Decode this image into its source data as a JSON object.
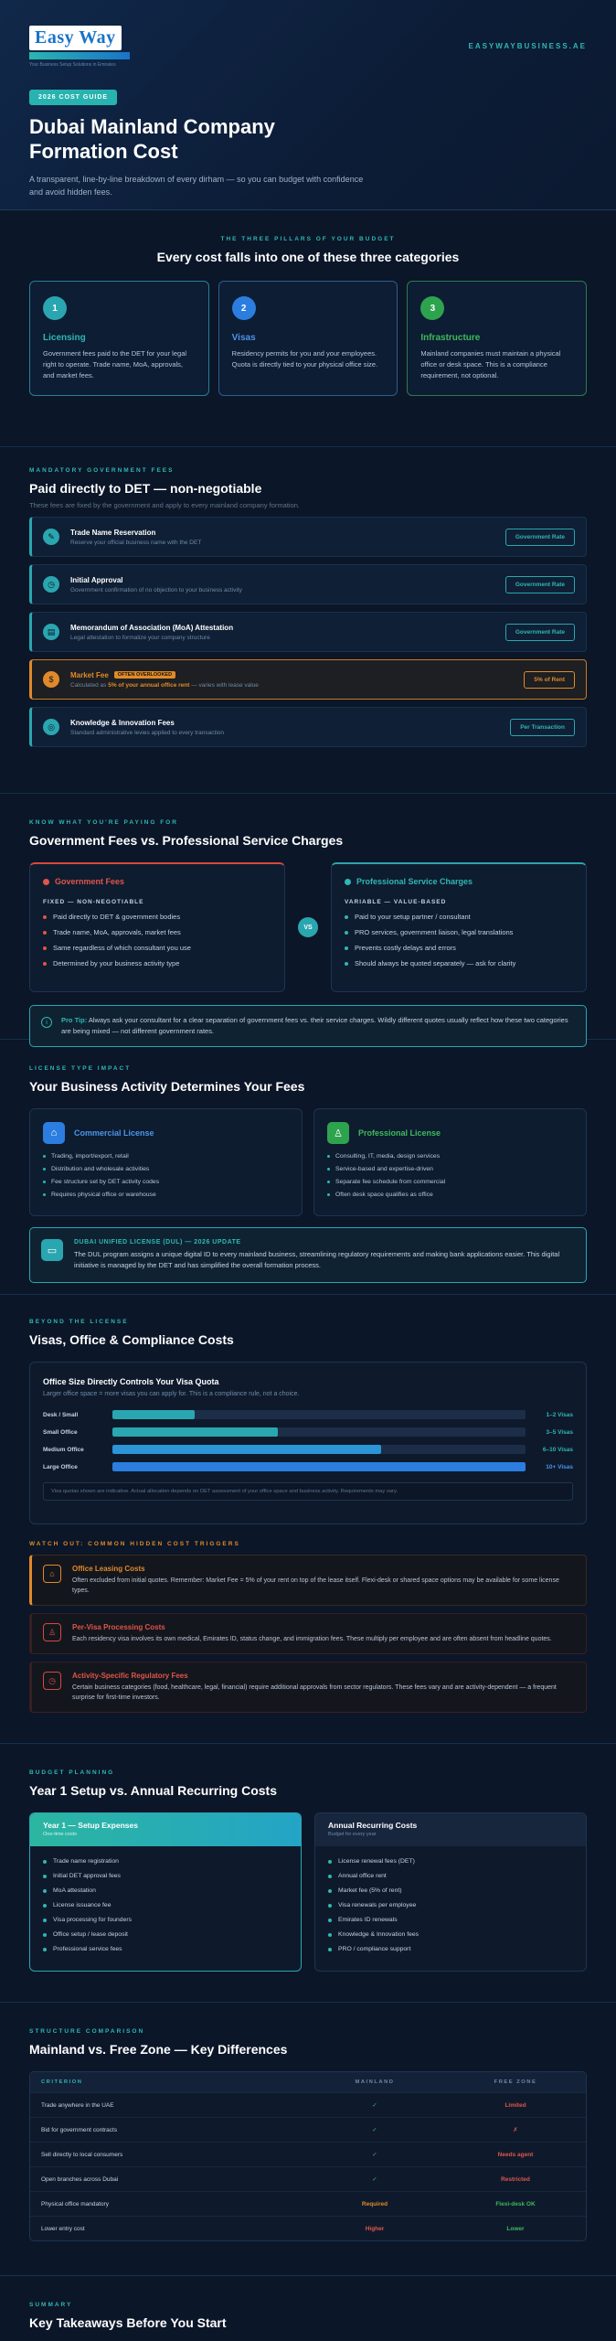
{
  "hero": {
    "logo": "Easy Way",
    "logo_tagline": "Your Business Setup Solutions in Emirates",
    "site": "EASYWAYBUSINESS.AE",
    "badge": "2026 COST GUIDE",
    "title": "Dubai Mainland Company Formation Cost",
    "subtitle": "A transparent, line-by-line breakdown of every dirham — so you can budget with confidence and avoid hidden fees."
  },
  "pillars": {
    "eyebrow": "THE THREE PILLARS OF YOUR BUDGET",
    "title": "Every cost falls into one of these three categories",
    "items": [
      {
        "num": "1",
        "title": "Licensing",
        "desc": "Government fees paid to the DET for your legal right to operate. Trade name, MoA, approvals, and market fees."
      },
      {
        "num": "2",
        "title": "Visas",
        "desc": "Residency permits for you and your employees. Quota is directly tied to your physical office size."
      },
      {
        "num": "3",
        "title": "Infrastructure",
        "desc": "Mainland companies must maintain a physical office or desk space. This is a compliance requirement, not optional."
      }
    ]
  },
  "fees": {
    "eyebrow": "MANDATORY GOVERNMENT FEES",
    "title": "Paid directly to DET — non-negotiable",
    "subtitle": "These fees are fixed by the government and apply to every mainland company formation.",
    "items": [
      {
        "icon": "✎",
        "title": "Trade Name Reservation",
        "sub": "Reserve your official business name with the DET",
        "tag": "Government Rate"
      },
      {
        "icon": "◷",
        "title": "Initial Approval",
        "sub": "Government confirmation of no objection to your business activity",
        "tag": "Government Rate"
      },
      {
        "icon": "▤",
        "title": "Memorandum of Association (MoA) Attestation",
        "sub": "Legal attestation to formalize your company structure",
        "tag": "Government Rate"
      },
      {
        "icon": "$",
        "title": "Market Fee",
        "badge": "OFTEN OVERLOOKED",
        "sub_pre": "Calculated as ",
        "sub_bold": "5% of your annual office rent",
        "sub_post": " — varies with lease value",
        "tag": "5% of Rent"
      },
      {
        "icon": "◎",
        "title": "Knowledge & Innovation Fees",
        "sub": "Standard administrative levies applied to every transaction",
        "tag": "Per Transaction"
      }
    ]
  },
  "compare": {
    "eyebrow": "KNOW WHAT YOU'RE PAYING FOR",
    "title": "Government Fees vs. Professional Service Charges",
    "gov": {
      "title": "Government Fees",
      "kind": "FIXED — NON-NEGOTIABLE",
      "items": [
        "Paid directly to DET & government bodies",
        "Trade name, MoA, approvals, market fees",
        "Same regardless of which consultant you use",
        "Determined by your business activity type"
      ]
    },
    "vs": "VS",
    "pro": {
      "title": "Professional Service Charges",
      "kind": "VARIABLE — VALUE-BASED",
      "items": [
        "Paid to your setup partner / consultant",
        "PRO services, government liaison, legal translations",
        "Prevents costly delays and errors",
        "Should always be quoted separately — ask for clarity"
      ]
    },
    "tip_label": "Pro Tip:",
    "tip_text": " Always ask your consultant for a clear separation of government fees vs. their service charges. Wildly different quotes usually reflect how these two categories are being mixed — not different government rates."
  },
  "license": {
    "eyebrow": "LICENSE TYPE IMPACT",
    "title": "Your Business Activity Determines Your Fees",
    "commercial": {
      "title": "Commercial License",
      "items": [
        "Trading, import/export, retail",
        "Distribution and wholesale activities",
        "Fee structure set by DET activity codes",
        "Requires physical office or warehouse"
      ]
    },
    "professional": {
      "title": "Professional License",
      "items": [
        "Consulting, IT, media, design services",
        "Service-based and expertise-driven",
        "Separate fee schedule from commercial",
        "Often desk space qualifies as office"
      ]
    },
    "dul_title": "DUBAI UNIFIED LICENSE (DUL) — 2026 UPDATE",
    "dul_text": "The DUL program assigns a unique digital ID to every mainland business, streamlining regulatory requirements and making bank applications easier. This digital initiative is managed by the DET and has simplified the overall formation process."
  },
  "visas": {
    "eyebrow": "BEYOND THE LICENSE",
    "title": "Visas, Office & Compliance Costs",
    "quota_title": "Office Size Directly Controls Your Visa Quota",
    "quota_sub": "Larger office space = more visas you can apply for. This is a compliance rule, not a choice.",
    "bars": [
      {
        "label": "Desk / Small",
        "fill": 0.2,
        "value": "1–2 Visas",
        "color": "#2aa6b0"
      },
      {
        "label": "Small Office",
        "fill": 0.4,
        "value": "3–5 Visas",
        "color": "#2aa6b0"
      },
      {
        "label": "Medium Office",
        "fill": 0.65,
        "value": "6–10 Visas",
        "color": "#2b95d8"
      },
      {
        "label": "Large Office",
        "fill": 1.0,
        "value": "10+ Visas",
        "color": "#2b7ee0"
      }
    ],
    "quota_note": "Visa quotas shown are indicative. Actual allocation depends on DET assessment of your office space and business activity. Requirements may vary.",
    "watch_eyebrow": "WATCH OUT: COMMON HIDDEN COST TRIGGERS",
    "traps": [
      {
        "icon": "⌂",
        "title": "Office Leasing Costs",
        "text": "Often excluded from initial quotes. Remember: Market Fee = 5% of your rent on top of the lease itself. Flexi-desk or shared space options may be available for some license types."
      },
      {
        "icon": "♙",
        "title": "Per-Visa Processing Costs",
        "text": "Each residency visa involves its own medical, Emirates ID, status change, and immigration fees. These multiply per employee and are often absent from headline quotes."
      },
      {
        "icon": "◷",
        "title": "Activity-Specific Regulatory Fees",
        "text": "Certain business categories (food, healthcare, legal, financial) require additional approvals from sector regulators. These fees vary and are activity-dependent — a frequent surprise for first-time investors."
      }
    ]
  },
  "budget": {
    "eyebrow": "BUDGET PLANNING",
    "title": "Year 1 Setup vs. Annual Recurring Costs",
    "setup": {
      "title": "Year 1 — Setup Expenses",
      "sub": "One-time costs",
      "items": [
        "Trade name registration",
        "Initial DET approval fees",
        "MoA attestation",
        "License issuance fee",
        "Visa processing for founders",
        "Office setup / lease deposit",
        "Professional service fees"
      ]
    },
    "recurring": {
      "title": "Annual Recurring Costs",
      "sub": "Budget for every year",
      "items": [
        "License renewal fees (DET)",
        "Annual office rent",
        "Market fee (5% of rent)",
        "Visa renewals per employee",
        "Emirates ID renewals",
        "Knowledge & Innovation fees",
        "PRO / compliance support"
      ]
    }
  },
  "structure": {
    "eyebrow": "STRUCTURE COMPARISON",
    "title": "Mainland vs. Free Zone — Key Differences",
    "headers": [
      "CRITERION",
      "MAINLAND",
      "FREE ZONE"
    ],
    "rows": [
      {
        "criterion": "Trade anywhere in the UAE",
        "mainland": "✓",
        "mainland_class": "v-check",
        "freezone": "Limited",
        "freezone_class": "v-red"
      },
      {
        "criterion": "Bid for government contracts",
        "mainland": "✓",
        "mainland_class": "v-check",
        "freezone": "✗",
        "freezone_class": "v-x"
      },
      {
        "criterion": "Sell directly to local consumers",
        "mainland": "✓",
        "mainland_class": "v-check",
        "freezone": "Needs agent",
        "freezone_class": "v-red"
      },
      {
        "criterion": "Open branches across Dubai",
        "mainland": "✓",
        "mainland_class": "v-check",
        "freezone": "Restricted",
        "freezone_class": "v-red"
      },
      {
        "criterion": "Physical office mandatory",
        "mainland": "Required",
        "mainland_class": "v-orange",
        "freezone": "Flexi-desk OK",
        "freezone_class": "v-green"
      },
      {
        "criterion": "Lower entry cost",
        "mainland": "Higher",
        "mainland_class": "v-red",
        "freezone": "Lower",
        "freezone_class": "v-green"
      }
    ]
  },
  "summary": {
    "eyebrow": "SUMMARY",
    "title": "Key Takeaways Before You Start"
  }
}
